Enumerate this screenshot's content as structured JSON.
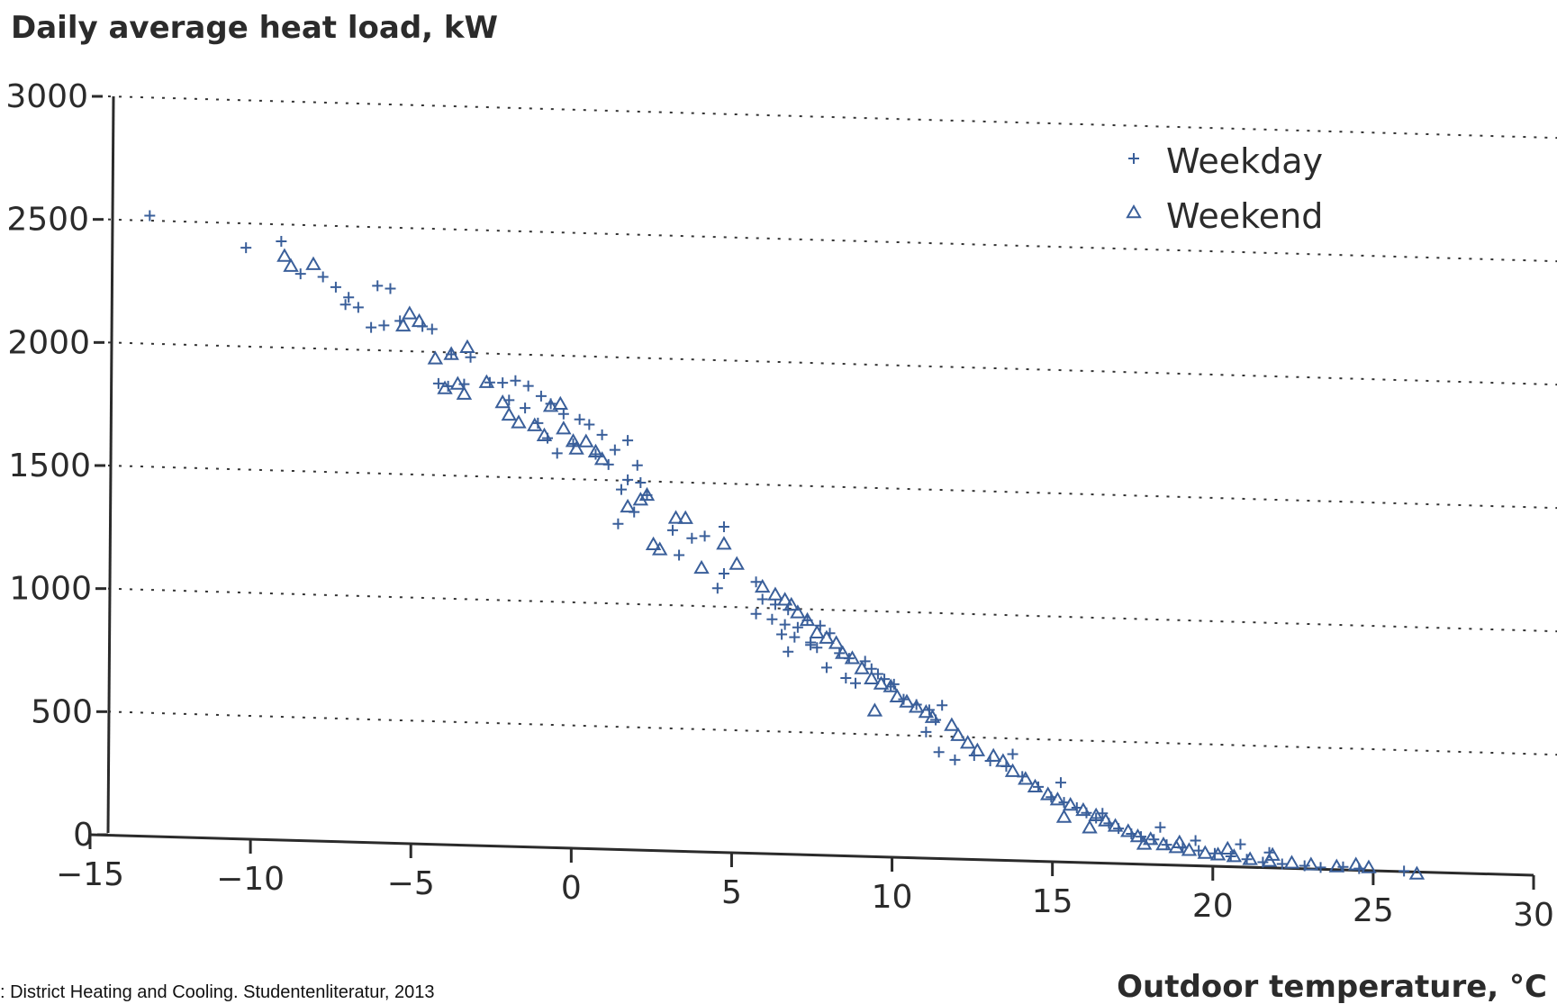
{
  "chart_data": {
    "type": "scatter",
    "title": "",
    "ylabel": "Daily average heat load, kW",
    "xlabel": "Outdoor temperature, °C",
    "source": ": District Heating and Cooling. Studentenliteratur, 2013",
    "xlim": [
      -15,
      30
    ],
    "ylim": [
      0,
      3000
    ],
    "x_ticks": [
      -15,
      -10,
      -5,
      0,
      5,
      10,
      15,
      20,
      25,
      30
    ],
    "y_ticks": [
      0,
      500,
      1000,
      1500,
      2000,
      2500,
      3000
    ],
    "x_tick_labels": [
      "−15",
      "−10",
      "−5",
      "0",
      "5",
      "10",
      "15",
      "20",
      "25",
      "30"
    ],
    "y_tick_labels": [
      "0",
      "500",
      "1000",
      "1500",
      "2000",
      "2500",
      "3000"
    ],
    "grid": "horizontal dotted",
    "legend_position": "top-right",
    "color": "#3a5f9a",
    "series": [
      {
        "name": "Weekday",
        "marker": "plus",
        "points": [
          [
            -13.7,
            2520
          ],
          [
            -10.7,
            2400
          ],
          [
            -9.6,
            2430
          ],
          [
            -9.0,
            2300
          ],
          [
            -8.3,
            2290
          ],
          [
            -7.9,
            2250
          ],
          [
            -7.5,
            2210
          ],
          [
            -7.2,
            2170
          ],
          [
            -7.6,
            2180
          ],
          [
            -6.6,
            2260
          ],
          [
            -6.2,
            2250
          ],
          [
            -6.8,
            2090
          ],
          [
            -6.4,
            2100
          ],
          [
            -5.9,
            2120
          ],
          [
            -5.2,
            2100
          ],
          [
            -4.9,
            2090
          ],
          [
            -4.3,
            1990
          ],
          [
            -3.7,
            1980
          ],
          [
            -4.7,
            1870
          ],
          [
            -4.4,
            1860
          ],
          [
            -3.9,
            1870
          ],
          [
            -3.1,
            1880
          ],
          [
            -2.7,
            1880
          ],
          [
            -2.3,
            1890
          ],
          [
            -1.9,
            1870
          ],
          [
            -1.5,
            1830
          ],
          [
            -1.2,
            1800
          ],
          [
            -0.8,
            1760
          ],
          [
            -0.3,
            1740
          ],
          [
            0.0,
            1720
          ],
          [
            0.4,
            1680
          ],
          [
            0.8,
            1620
          ],
          [
            1.2,
            1660
          ],
          [
            -2.5,
            1810
          ],
          [
            -2.0,
            1780
          ],
          [
            -1.6,
            1720
          ],
          [
            -1.3,
            1660
          ],
          [
            -1.0,
            1600
          ],
          [
            -0.5,
            1640
          ],
          [
            0.2,
            1600
          ],
          [
            0.6,
            1560
          ],
          [
            1.5,
            1560
          ],
          [
            1.2,
            1500
          ],
          [
            1.6,
            1490
          ],
          [
            1.8,
            1440
          ],
          [
            1.0,
            1460
          ],
          [
            0.9,
            1320
          ],
          [
            1.4,
            1370
          ],
          [
            2.6,
            1300
          ],
          [
            3.2,
            1270
          ],
          [
            3.6,
            1280
          ],
          [
            4.2,
            1320
          ],
          [
            4.0,
            1070
          ],
          [
            4.2,
            1130
          ],
          [
            2.8,
            1200
          ],
          [
            5.2,
            1100
          ],
          [
            5.4,
            1030
          ],
          [
            5.8,
            1010
          ],
          [
            6.2,
            990
          ],
          [
            5.2,
            970
          ],
          [
            5.7,
            950
          ],
          [
            6.1,
            930
          ],
          [
            6.5,
            920
          ],
          [
            6.8,
            950
          ],
          [
            7.2,
            930
          ],
          [
            7.5,
            900
          ],
          [
            6.0,
            890
          ],
          [
            6.4,
            880
          ],
          [
            6.9,
            860
          ],
          [
            7.1,
            840
          ],
          [
            7.8,
            820
          ],
          [
            8.1,
            800
          ],
          [
            8.6,
            790
          ],
          [
            8.8,
            760
          ],
          [
            9.0,
            740
          ],
          [
            9.2,
            720
          ],
          [
            9.5,
            700
          ],
          [
            7.4,
            760
          ],
          [
            8.0,
            720
          ],
          [
            6.9,
            850
          ],
          [
            6.2,
            820
          ],
          [
            8.3,
            700
          ],
          [
            9.8,
            640
          ],
          [
            10.2,
            620
          ],
          [
            10.6,
            600
          ],
          [
            11.0,
            620
          ],
          [
            10.8,
            560
          ],
          [
            10.5,
            510
          ],
          [
            10.9,
            430
          ],
          [
            11.4,
            400
          ],
          [
            12.0,
            420
          ],
          [
            12.5,
            400
          ],
          [
            13.0,
            380
          ],
          [
            13.5,
            340
          ],
          [
            14.0,
            300
          ],
          [
            14.4,
            260
          ],
          [
            14.8,
            240
          ],
          [
            15.2,
            220
          ],
          [
            15.5,
            200
          ],
          [
            15.8,
            180
          ],
          [
            16.2,
            160
          ],
          [
            16.5,
            140
          ],
          [
            16.9,
            120
          ],
          [
            17.2,
            110
          ],
          [
            17.6,
            100
          ],
          [
            18.0,
            80
          ],
          [
            18.5,
            70
          ],
          [
            19.0,
            60
          ],
          [
            19.5,
            50
          ],
          [
            20.0,
            40
          ],
          [
            20.5,
            30
          ],
          [
            21.0,
            20
          ],
          [
            21.6,
            15
          ],
          [
            22.3,
            10
          ],
          [
            22.8,
            5
          ],
          [
            23.5,
            10
          ],
          [
            24.0,
            5
          ],
          [
            25.4,
            0
          ],
          [
            13.2,
            430
          ],
          [
            14.7,
            320
          ],
          [
            16.0,
            200
          ],
          [
            17.8,
            150
          ],
          [
            18.9,
            100
          ],
          [
            20.3,
            90
          ],
          [
            21.2,
            60
          ],
          [
            9.4,
            690
          ]
        ]
      },
      {
        "name": "Weekend",
        "marker": "triangle",
        "points": [
          [
            -9.5,
            2370
          ],
          [
            -9.3,
            2330
          ],
          [
            -8.6,
            2340
          ],
          [
            -5.6,
            2150
          ],
          [
            -5.8,
            2100
          ],
          [
            -5.3,
            2120
          ],
          [
            -4.8,
            1970
          ],
          [
            -4.3,
            1990
          ],
          [
            -3.8,
            2020
          ],
          [
            -4.1,
            1870
          ],
          [
            -3.9,
            1830
          ],
          [
            -4.5,
            1850
          ],
          [
            -3.2,
            1880
          ],
          [
            -2.7,
            1800
          ],
          [
            -2.5,
            1750
          ],
          [
            -2.2,
            1720
          ],
          [
            -1.7,
            1710
          ],
          [
            -1.4,
            1670
          ],
          [
            -1.2,
            1790
          ],
          [
            -0.9,
            1800
          ],
          [
            -0.8,
            1700
          ],
          [
            -0.5,
            1650
          ],
          [
            -0.4,
            1620
          ],
          [
            -0.1,
            1650
          ],
          [
            0.2,
            1610
          ],
          [
            0.4,
            1580
          ],
          [
            1.6,
            1420
          ],
          [
            1.8,
            1440
          ],
          [
            1.2,
            1390
          ],
          [
            2.0,
            1240
          ],
          [
            2.2,
            1220
          ],
          [
            2.7,
            1350
          ],
          [
            3.0,
            1350
          ],
          [
            3.5,
            1150
          ],
          [
            4.2,
            1250
          ],
          [
            4.6,
            1170
          ],
          [
            5.4,
            1080
          ],
          [
            5.8,
            1050
          ],
          [
            6.1,
            1030
          ],
          [
            6.3,
            1010
          ],
          [
            6.5,
            980
          ],
          [
            6.8,
            950
          ],
          [
            7.1,
            900
          ],
          [
            7.4,
            880
          ],
          [
            7.7,
            860
          ],
          [
            7.9,
            820
          ],
          [
            8.2,
            800
          ],
          [
            8.5,
            760
          ],
          [
            8.8,
            720
          ],
          [
            9.1,
            700
          ],
          [
            9.4,
            690
          ],
          [
            9.6,
            650
          ],
          [
            9.9,
            630
          ],
          [
            10.2,
            610
          ],
          [
            10.5,
            590
          ],
          [
            10.7,
            570
          ],
          [
            11.3,
            540
          ],
          [
            11.5,
            500
          ],
          [
            11.8,
            470
          ],
          [
            12.1,
            440
          ],
          [
            12.6,
            420
          ],
          [
            12.9,
            400
          ],
          [
            13.2,
            360
          ],
          [
            13.6,
            330
          ],
          [
            13.9,
            300
          ],
          [
            14.3,
            270
          ],
          [
            14.6,
            250
          ],
          [
            15.0,
            230
          ],
          [
            15.4,
            210
          ],
          [
            15.8,
            190
          ],
          [
            16.1,
            170
          ],
          [
            16.4,
            150
          ],
          [
            16.8,
            130
          ],
          [
            17.1,
            110
          ],
          [
            17.5,
            100
          ],
          [
            17.9,
            80
          ],
          [
            18.3,
            70
          ],
          [
            18.7,
            60
          ],
          [
            19.2,
            50
          ],
          [
            19.6,
            45
          ],
          [
            20.1,
            40
          ],
          [
            20.6,
            30
          ],
          [
            21.2,
            25
          ],
          [
            21.9,
            20
          ],
          [
            22.5,
            15
          ],
          [
            23.3,
            10
          ],
          [
            23.9,
            20
          ],
          [
            24.3,
            10
          ],
          [
            25.8,
            -10
          ],
          [
            8.9,
            590
          ],
          [
            14.8,
            180
          ],
          [
            15.6,
            140
          ],
          [
            17.3,
            80
          ],
          [
            18.4,
            90
          ],
          [
            19.9,
            70
          ],
          [
            21.3,
            50
          ]
        ]
      }
    ]
  }
}
